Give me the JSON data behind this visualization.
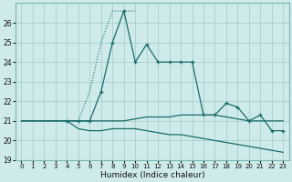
{
  "xlabel": "Humidex (Indice chaleur)",
  "bg_color": "#ceeaea",
  "line_color": "#1a6b6b",
  "grid_color": "#aacfcf",
  "x": [
    0,
    1,
    2,
    3,
    4,
    5,
    6,
    7,
    8,
    9,
    10,
    11,
    12,
    13,
    14,
    15,
    16,
    17,
    18,
    19,
    20,
    21,
    22,
    23
  ],
  "line1_dotted_x": [
    0,
    1,
    2,
    3,
    4,
    5,
    6,
    7,
    8,
    9,
    10
  ],
  "line1_dotted_y": [
    21,
    21,
    21,
    21,
    21,
    21,
    22.5,
    25,
    26.6,
    26.6,
    26.6
  ],
  "line1_x": [
    4,
    5,
    6,
    7,
    8,
    9,
    10,
    11,
    12,
    13,
    14,
    15,
    16,
    17,
    18,
    19,
    20,
    21,
    22,
    23
  ],
  "line1_y": [
    21,
    21,
    21,
    22.5,
    25,
    26.6,
    24,
    24.9,
    24,
    24,
    24,
    24,
    21.3,
    21.3,
    21.9,
    21.7,
    21,
    21.3,
    20.5,
    20.5
  ],
  "line2_x": [
    0,
    1,
    2,
    3,
    4,
    5,
    6,
    7,
    8,
    9,
    10,
    11,
    12,
    13,
    14,
    15,
    16,
    17,
    18,
    19,
    20,
    21,
    22,
    23
  ],
  "line2_y": [
    21,
    21,
    21,
    21,
    21,
    21,
    21,
    21,
    21,
    21,
    21.1,
    21.2,
    21.2,
    21.2,
    21.3,
    21.3,
    21.3,
    21.3,
    21.2,
    21.1,
    21,
    21,
    21,
    21
  ],
  "line3_x": [
    0,
    1,
    2,
    3,
    4,
    5,
    6,
    7,
    8,
    9,
    10,
    11,
    12,
    13,
    14,
    15,
    16,
    17,
    18,
    19,
    20,
    21,
    22,
    23
  ],
  "line3_y": [
    21,
    21,
    21,
    21,
    21,
    20.6,
    20.5,
    20.5,
    20.6,
    20.6,
    20.6,
    20.5,
    20.4,
    20.3,
    20.3,
    20.2,
    20.1,
    20.0,
    19.9,
    19.8,
    19.7,
    19.6,
    19.5,
    19.4
  ],
  "ylim": [
    19,
    27
  ],
  "yticks": [
    19,
    20,
    21,
    22,
    23,
    24,
    25,
    26
  ],
  "xlim": [
    -0.5,
    23.5
  ],
  "xticks": [
    0,
    1,
    2,
    3,
    4,
    5,
    6,
    7,
    8,
    9,
    10,
    11,
    12,
    13,
    14,
    15,
    16,
    17,
    18,
    19,
    20,
    21,
    22,
    23
  ]
}
